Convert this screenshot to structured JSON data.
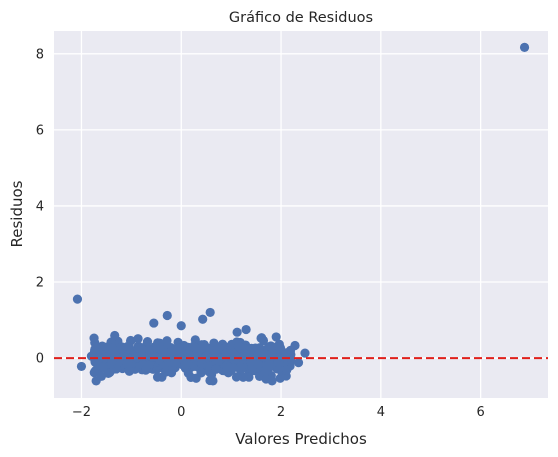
{
  "chart_data": {
    "type": "scatter",
    "title": "Gráfico de Residuos",
    "xlabel": "Valores Predichos",
    "ylabel": "Residuos",
    "xlim": [
      -2.55,
      7.35
    ],
    "ylim": [
      -1.05,
      8.6
    ],
    "xticks": [
      -2,
      0,
      2,
      4,
      6
    ],
    "yticks": [
      0,
      2,
      4,
      6,
      8
    ],
    "xtick_labels": [
      "−2",
      "0",
      "2",
      "4",
      "6"
    ],
    "ytick_labels": [
      "0",
      "2",
      "4",
      "6",
      "8"
    ],
    "grid": true,
    "reference_line": {
      "y": 0,
      "style": "dashed",
      "color": "#e0201b"
    },
    "marker_color": "#4c72b0",
    "background_color": "#eaeaf2",
    "outliers": [
      {
        "x": 6.88,
        "y": 8.17
      },
      {
        "x": -2.08,
        "y": 1.55
      },
      {
        "x": 0.58,
        "y": 1.2
      },
      {
        "x": -0.28,
        "y": 1.12
      },
      {
        "x": 0.43,
        "y": 1.02
      },
      {
        "x": -0.55,
        "y": 0.92
      },
      {
        "x": 0.0,
        "y": 0.85
      },
      {
        "x": 1.3,
        "y": 0.75
      },
      {
        "x": 1.12,
        "y": 0.68
      },
      {
        "x": 2.48,
        "y": 0.13
      },
      {
        "x": 2.35,
        "y": -0.12
      },
      {
        "x": 1.82,
        "y": -0.6
      },
      {
        "x": -2.0,
        "y": -0.22
      },
      {
        "x": -1.8,
        "y": 0.05
      },
      {
        "x": -1.6,
        "y": -0.48
      },
      {
        "x": 2.28,
        "y": 0.33
      },
      {
        "x": 1.6,
        "y": 0.52
      }
    ],
    "cluster": {
      "count": 700,
      "x_range": [
        -1.75,
        2.2
      ],
      "y_range": [
        -0.6,
        0.9
      ],
      "center_y": -0.02
    }
  }
}
